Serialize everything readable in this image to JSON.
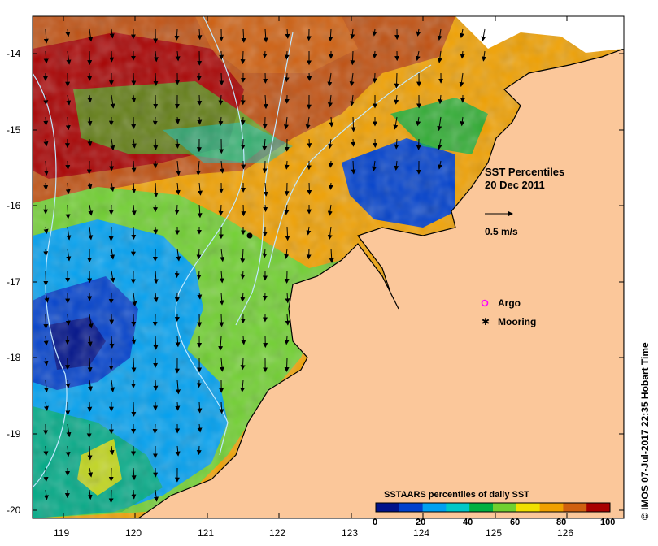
{
  "map": {
    "title_line1": "SST Percentiles",
    "title_line2": "20 Dec 2011",
    "scale_label": "0.5 m/s",
    "legend": {
      "argo": "Argo",
      "mooring": "Mooring"
    },
    "credit": "© IMOS 07-Jul-2017 22:35 Hobart Time",
    "lat_ticks": [
      "-14",
      "-15",
      "-16",
      "-17",
      "-18",
      "-19",
      "-20"
    ],
    "lon_ticks": [
      "119",
      "120",
      "121",
      "122",
      "123",
      "124",
      "125",
      "126"
    ],
    "colorbar": {
      "title": "SSTAARS percentiles of daily SST",
      "ticks": [
        "0",
        "20",
        "40",
        "60",
        "80",
        "100"
      ],
      "colors": [
        "#00128a",
        "#0040cc",
        "#00a0f0",
        "#00c8c8",
        "#00b040",
        "#70d030",
        "#f0e000",
        "#f0a000",
        "#d06010",
        "#a80000"
      ]
    },
    "colors": {
      "land": "#fbc79a",
      "sea_cool": "#1a6fe0",
      "sea_mid": "#3cc020",
      "sea_warm": "#e07000",
      "sea_hot": "#a00000",
      "contour": "#c0e8ff"
    }
  }
}
